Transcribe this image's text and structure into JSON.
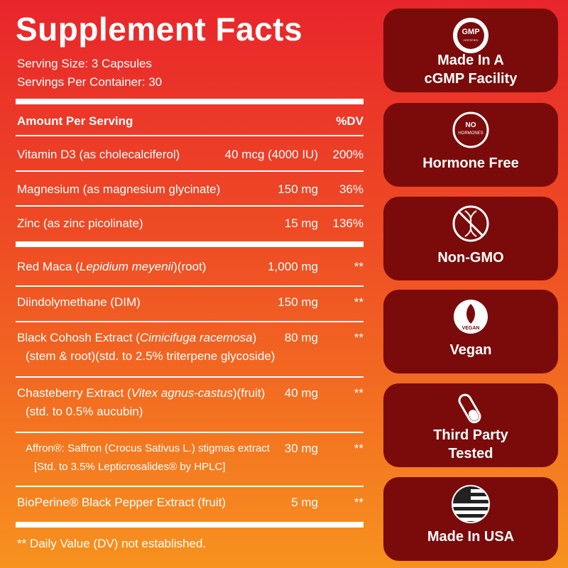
{
  "facts": {
    "title": "Supplement Facts",
    "serving_size": "Serving Size: 3 Capsules",
    "servings_per_container": "Servings Per Container: 30",
    "header": {
      "label": "Amount Per Serving",
      "dv": "%DV"
    },
    "vitamins": [
      {
        "name": "Vitamin D3 (as cholecalciferol)",
        "amount": "40 mcg (4000 IU)",
        "dv": "200%"
      },
      {
        "name": "Magnesium (as magnesium glycinate)",
        "amount": "150 mg",
        "dv": "36%"
      },
      {
        "name": "Zinc (as zinc picolinate)",
        "amount": "15 mg",
        "dv": "136%"
      }
    ],
    "ingredients": [
      {
        "name": "Red Maca (",
        "latin": "Lepidium meyenii",
        "rest": ")(root)",
        "amount": "1,000 mg",
        "dv": "**"
      },
      {
        "name": "Diindolymethane (DIM)",
        "amount": "150 mg",
        "dv": "**"
      },
      {
        "name": "Black Cohosh Extract (",
        "latin": "Cimicifuga racemosa",
        "rest": ")",
        "line2": "(stem & root)(std. to 2.5% triterpene glycoside)",
        "amount": "80 mg",
        "dv": "**"
      },
      {
        "name": "Chasteberry Extract (",
        "latin": "Vitex agnus-castus",
        "rest": ")(fruit)",
        "line2": "(std. to 0.5% aucubin)",
        "amount": "40 mg",
        "dv": "**"
      },
      {
        "name": "Affron®: Saffron (Crocus Sativus L.) stigmas extract",
        "line2": "[Std. to 3.5% Lepticrosalides® by HPLC]",
        "amount": "30 mg",
        "dv": "**",
        "small": true
      },
      {
        "name": "BioPerine® Black Pepper Extract (fruit)",
        "amount": "5 mg",
        "dv": "**"
      }
    ],
    "footnote": "** Daily Value (DV) not established."
  },
  "badges": [
    {
      "icon_text": "GMP",
      "icon_subtext": "CERTIFIED",
      "label": [
        "Made In A",
        "cGMP Facility"
      ]
    },
    {
      "icon_text": "NO",
      "icon_subtext": "HORMONES",
      "label": [
        "Hormone Free"
      ]
    },
    {
      "label": [
        "Non-GMO"
      ]
    },
    {
      "icon_text": "VEGAN",
      "label": [
        "Vegan"
      ]
    },
    {
      "label": [
        "Third Party",
        "Tested"
      ]
    },
    {
      "label": [
        "Made In USA"
      ]
    }
  ]
}
